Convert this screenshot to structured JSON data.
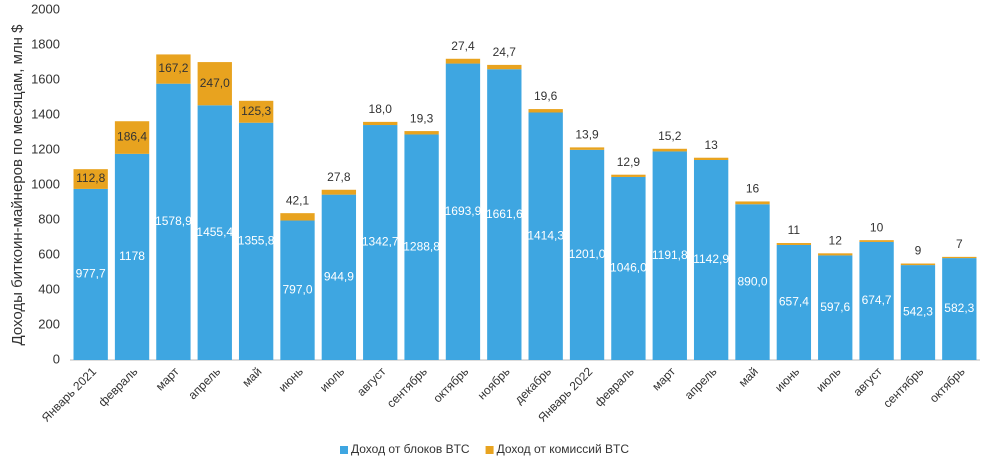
{
  "chart_data": {
    "type": "stacked_bar",
    "y_label": "Доходы биткоин-майнеров по месяцам, млн $",
    "categories": [
      "Январь 2021",
      "февраль",
      "март",
      "апрель",
      "май",
      "июнь",
      "июль",
      "август",
      "сентябрь",
      "октябрь",
      "ноябрь",
      "декабрь",
      "Январь 2022",
      "февраль",
      "март",
      "апрель",
      "май",
      "июнь",
      "июль",
      "август",
      "сентябрь",
      "октябрь"
    ],
    "series": [
      {
        "name": "Доход от блоков BTC",
        "color": "#3ea6e1",
        "values": [
          977.7,
          1178,
          1578.9,
          1455.4,
          1355.8,
          797.0,
          944.9,
          1342.7,
          1288.8,
          1693.9,
          1661.6,
          1414.3,
          1201.0,
          1046.0,
          1191.8,
          1142.9,
          890.0,
          657.4,
          597.6,
          674.7,
          542.3,
          582.3
        ],
        "value_labels": [
          "977,7",
          "1178",
          "1578,9",
          "1455,4",
          "1355,8",
          "797,0",
          "944,9",
          "1342,7",
          "1288,8",
          "1693,9",
          "1661,6",
          "1414,3",
          "1201,0",
          "1046,0",
          "1191,8",
          "1142,9",
          "890,0",
          "657,4",
          "597,6",
          "674,7",
          "542,3",
          "582,3"
        ]
      },
      {
        "name": "Доход от комиссий BTC",
        "color": "#e8a31f",
        "values": [
          112.8,
          186.4,
          167.2,
          247.0,
          125.3,
          42.1,
          27.8,
          18.0,
          19.3,
          27.4,
          24.7,
          19.6,
          13.9,
          12.9,
          15.2,
          13,
          16,
          11,
          12,
          10,
          9,
          7
        ],
        "value_labels": [
          "112,8",
          "186,4",
          "167,2",
          "247,0",
          "125,3",
          "42,1",
          "27,8",
          "18,0",
          "19,3",
          "27,4",
          "24,7",
          "19,6",
          "13,9",
          "12,9",
          "15,2",
          "13",
          "16",
          "11",
          "12",
          "10",
          "9",
          "7"
        ]
      }
    ],
    "ylim": [
      0,
      2000
    ],
    "yticks": [
      0,
      200,
      400,
      600,
      800,
      1000,
      1200,
      1400,
      1600,
      1800,
      2000
    ],
    "grid": false,
    "legend": "bottom"
  }
}
